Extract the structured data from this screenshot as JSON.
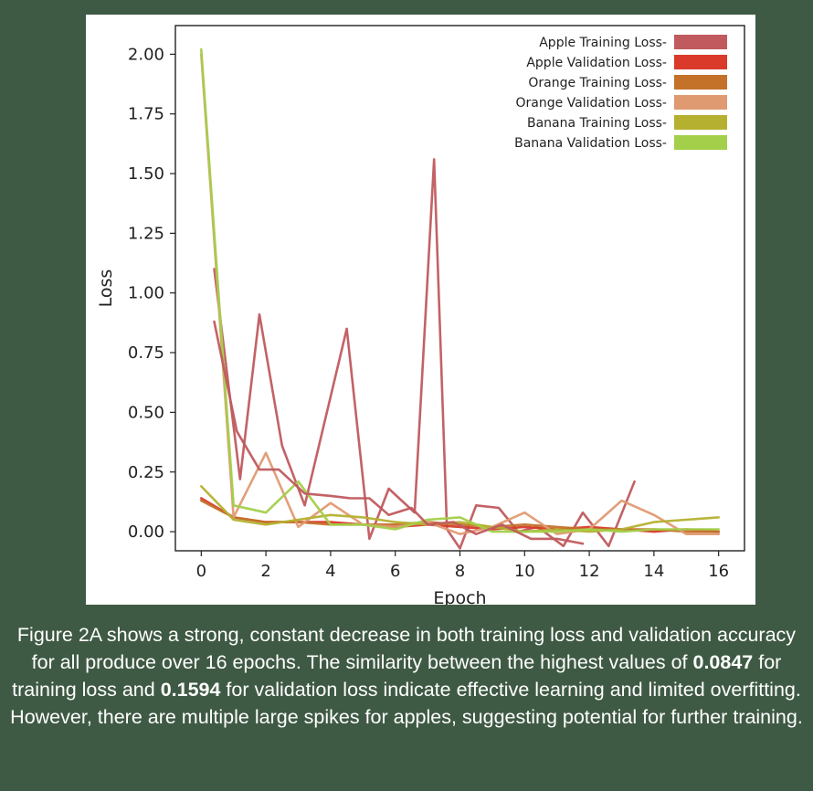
{
  "chart_data": {
    "type": "line",
    "title": "",
    "xlabel": "Epoch",
    "ylabel": "Loss",
    "xlim": [
      -0.8,
      16.8
    ],
    "ylim": [
      -0.08,
      2.12
    ],
    "xticks": [
      0,
      2,
      4,
      6,
      8,
      10,
      12,
      14,
      16
    ],
    "yticks": [
      0.0,
      0.25,
      0.5,
      0.75,
      1.0,
      1.25,
      1.5,
      1.75,
      2.0
    ],
    "xtick_labels": [
      "0",
      "2",
      "4",
      "6",
      "8",
      "10",
      "12",
      "14",
      "16"
    ],
    "ytick_labels": [
      "0.00",
      "0.25",
      "0.50",
      "0.75",
      "1.00",
      "1.25",
      "1.50",
      "1.75",
      "2.00"
    ],
    "legend_position": "upper-right",
    "series": [
      {
        "name": "Apple Training Loss-",
        "color": "#c05a5e",
        "x": [
          0.4,
          1.2,
          1.8,
          2.5,
          3.2,
          4.5,
          5.2,
          5.8,
          6.6,
          7.2,
          7.6,
          8.0,
          8.5,
          9.2,
          9.8,
          10.4,
          11.2,
          11.8,
          12.6,
          13.4
        ],
        "y": [
          1.1,
          0.22,
          0.91,
          0.36,
          0.11,
          0.85,
          -0.03,
          0.18,
          0.08,
          1.56,
          0.01,
          -0.07,
          0.11,
          0.1,
          0.0,
          0.02,
          -0.06,
          0.08,
          -0.06,
          0.21
        ]
      },
      {
        "name": "Apple Validation Loss-",
        "color": "#d93a2a",
        "x": [
          0,
          1,
          2,
          3,
          4,
          5,
          6,
          7,
          8,
          9,
          10,
          11,
          12,
          13,
          14,
          15,
          16
        ],
        "y": [
          0.14,
          0.06,
          0.04,
          0.04,
          0.04,
          0.03,
          0.02,
          0.03,
          0.02,
          0.01,
          0.02,
          0.01,
          0.02,
          0.01,
          0.0,
          0.01,
          0.0
        ]
      },
      {
        "name": "Orange Training Loss-",
        "color": "#c4722a",
        "x": [
          0,
          1,
          2,
          3,
          4,
          5,
          6,
          7,
          8,
          9,
          10,
          11,
          12,
          13,
          14,
          15,
          16
        ],
        "y": [
          0.13,
          0.06,
          0.04,
          0.04,
          0.03,
          0.03,
          0.03,
          0.04,
          0.03,
          0.02,
          0.03,
          0.02,
          0.01,
          0.01,
          0.01,
          0.0,
          0.0
        ]
      },
      {
        "name": "Orange Validation Loss-",
        "color": "#e09a72",
        "x": [
          0,
          1,
          2,
          3,
          4,
          5,
          6,
          7,
          8,
          9,
          10,
          11,
          12,
          13,
          14,
          15,
          16
        ],
        "y": [
          2.0,
          0.06,
          0.33,
          0.02,
          0.12,
          0.03,
          0.02,
          0.04,
          -0.01,
          0.02,
          0.08,
          -0.01,
          0.01,
          0.13,
          0.07,
          -0.01,
          -0.01
        ]
      },
      {
        "name": "Banana Training Loss-",
        "color": "#b5b030",
        "x": [
          0,
          1,
          2,
          3,
          4,
          5,
          6,
          7,
          8,
          9,
          10,
          11,
          12,
          13,
          14,
          15,
          16
        ],
        "y": [
          0.19,
          0.05,
          0.03,
          0.05,
          0.07,
          0.06,
          0.04,
          0.03,
          0.04,
          0.02,
          0.0,
          0.01,
          0.0,
          0.01,
          0.04,
          0.05,
          0.06
        ]
      },
      {
        "name": "Banana Validation Loss-",
        "color": "#a3cf4a",
        "x": [
          0,
          1,
          2,
          3,
          4,
          5,
          6,
          7,
          8,
          9,
          10,
          11,
          12,
          13,
          14,
          15,
          16
        ],
        "y": [
          2.02,
          0.11,
          0.08,
          0.21,
          0.03,
          0.03,
          0.01,
          0.05,
          0.06,
          0.0,
          0.0,
          0.0,
          0.01,
          0.0,
          0.01,
          0.01,
          0.01
        ]
      },
      {
        "name": "Apple Training Loss-",
        "color": "#c05a5e",
        "x": [
          0.4,
          1.1,
          1.8,
          2.4,
          3.2,
          4.0,
          4.6,
          5.2,
          5.8,
          6.5,
          7.0,
          7.8,
          8.5,
          9.3,
          10.2,
          11.0,
          11.8
        ],
        "y": [
          0.88,
          0.42,
          0.26,
          0.26,
          0.16,
          0.15,
          0.14,
          0.14,
          0.07,
          0.1,
          0.03,
          0.04,
          -0.01,
          0.03,
          -0.03,
          -0.03,
          -0.05
        ]
      }
    ]
  },
  "caption": {
    "part1": "Figure 2A shows a strong, constant decrease in both training loss and validation accuracy for all produce over 16 epochs. The similarity between the highest values of ",
    "bold1": "0.0847",
    "part2": " for training loss and ",
    "bold2": "0.1594",
    "part3": " for validation loss indicate effective learning and limited overfitting. However, there are multiple large spikes for apples, suggesting potential for further training."
  }
}
